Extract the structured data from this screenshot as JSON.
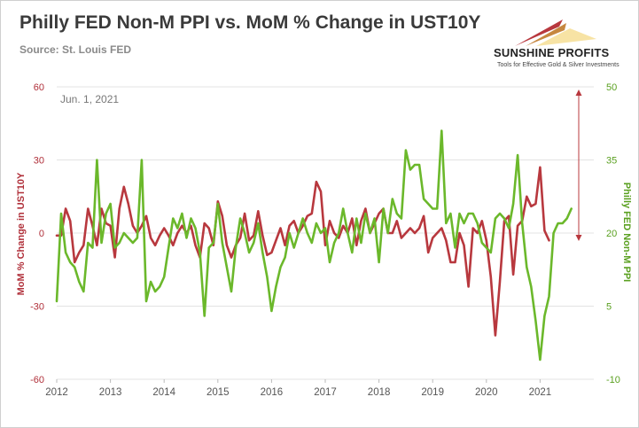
{
  "header": {
    "title": "Philly FED Non-M PPI vs. MoM % Change in UST10Y",
    "source": "Source: St. Louis FED"
  },
  "logo": {
    "brand": "SUNSHINE PROFITS",
    "tagline": "Tools for Effective Gold & Silver Investments"
  },
  "colors": {
    "series_red": "#b8383e",
    "series_green": "#6bb82b",
    "grid": "#e3e3e3",
    "left_axis": "#b0303a",
    "right_axis": "#5aa020"
  },
  "chart_data": {
    "type": "line",
    "title": "Philly FED Non-M PPI vs. MoM % Change in UST10Y",
    "annotation": "Jun. 1, 2021",
    "x_ticks": [
      "2012",
      "2013",
      "2014",
      "2015",
      "2016",
      "2017",
      "2018",
      "2019",
      "2020",
      "2021"
    ],
    "x_range": [
      2012.0,
      2022.0
    ],
    "y_left": {
      "label": "MoM % Change in UST10Y",
      "range": [
        -60,
        60
      ],
      "ticks": [
        -60,
        -30,
        0,
        30,
        60
      ]
    },
    "y_right": {
      "label": "Philly FED Non-M PPI",
      "range": [
        -10,
        50
      ],
      "ticks": [
        -10,
        5,
        20,
        35,
        50
      ]
    },
    "grid": "horizontal",
    "series": [
      {
        "axis": "left",
        "color": "#b8383e",
        "start": 2012.0,
        "step_months": 1,
        "values": [
          -1,
          -1,
          10,
          5,
          -12,
          -8,
          -5,
          10,
          3,
          -5,
          10,
          4,
          3,
          -10,
          10,
          19,
          12,
          3,
          0,
          3,
          7,
          -2,
          -5,
          -1,
          2,
          -1,
          -5,
          0,
          3,
          0,
          3,
          -5,
          -10,
          4,
          2,
          -5,
          13,
          7,
          -5,
          -10,
          -5,
          -2,
          8,
          -3,
          -1,
          9,
          -1,
          -9,
          -8,
          -3,
          2,
          -5,
          3,
          5,
          0,
          3,
          7,
          8,
          21,
          17,
          -5,
          5,
          0,
          -2,
          3,
          0,
          6,
          -5,
          5,
          10,
          0,
          4,
          8,
          10,
          0,
          0,
          5,
          -2,
          0,
          2,
          0,
          2,
          7,
          -8,
          -2,
          0,
          2,
          -3,
          -12,
          -12,
          0,
          -5,
          -22,
          2,
          0,
          5,
          -3,
          -18,
          -42,
          -20,
          5,
          7,
          -17,
          3,
          5,
          15,
          11,
          12,
          27,
          1,
          -3
        ]
      },
      {
        "axis": "right",
        "color": "#6bb82b",
        "start": 2012.0,
        "step_months": 1,
        "values": [
          6,
          24,
          16,
          14,
          13,
          10,
          8,
          18,
          17,
          35,
          18,
          24,
          26,
          17,
          18,
          20,
          19,
          18,
          19,
          35,
          6,
          10,
          8,
          9,
          11,
          17,
          23,
          21,
          24,
          19,
          23,
          21,
          16,
          3,
          17,
          18,
          26,
          18,
          13,
          8,
          17,
          23,
          20,
          16,
          18,
          22,
          16,
          11,
          4,
          9,
          13,
          15,
          20,
          17,
          20,
          23,
          20,
          18,
          22,
          20,
          21,
          14,
          18,
          20,
          25,
          20,
          16,
          23,
          18,
          24,
          20,
          23,
          14,
          25,
          20,
          27,
          24,
          23,
          37,
          33,
          34,
          34,
          27,
          26,
          25,
          25,
          41,
          22,
          24,
          17,
          24,
          22,
          24,
          24,
          22,
          18,
          17,
          16,
          23,
          24,
          23,
          21,
          26,
          36,
          22,
          13,
          9,
          2,
          -6,
          3,
          7,
          20,
          22,
          22,
          23,
          25
        ]
      }
    ]
  }
}
